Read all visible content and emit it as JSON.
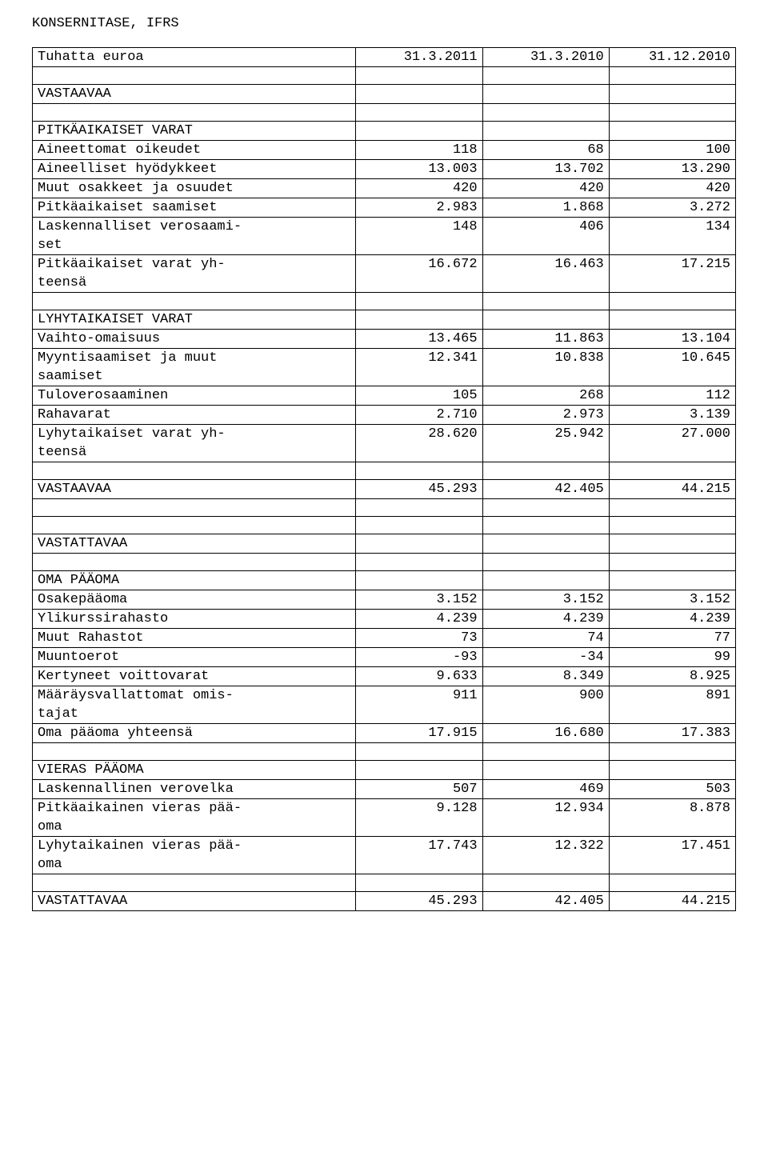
{
  "page_title": "KONSERNITASE, IFRS",
  "header": {
    "col1": "Tuhatta euroa",
    "col2": "31.3.2011",
    "col3": "31.3.2010",
    "col4": "31.12.2010"
  },
  "sections": {
    "vastaavaa": "VASTAAVAA",
    "pitkaaikaiset": "PITKÄAIKAISET VARAT",
    "lyhytaikaiset": "LYHYTAIKAISET VARAT",
    "vastattavaa": "VASTATTAVAA",
    "oma_paaoma": "OMA PÄÄOMA",
    "vieras_paaoma": "VIERAS PÄÄOMA"
  },
  "rows": {
    "aineettomat": {
      "label": "Aineettomat oikeudet",
      "v1": "118",
      "v2": "68",
      "v3": "100"
    },
    "aineelliset": {
      "label": "Aineelliset hyödykkeet",
      "v1": "13.003",
      "v2": "13.702",
      "v3": "13.290"
    },
    "muut_osakkeet": {
      "label": "Muut osakkeet ja osuudet",
      "v1": "420",
      "v2": "420",
      "v3": "420"
    },
    "pitkaaikaiset_saamiset": {
      "label": "Pitkäaikaiset saamiset",
      "v1": "2.983",
      "v2": "1.868",
      "v3": "3.272"
    },
    "lask_verosaamiset_1": {
      "label": "Laskennalliset verosaami-",
      "v1": "148",
      "v2": "406",
      "v3": "134"
    },
    "lask_verosaamiset_2": {
      "label": "set"
    },
    "pitk_varat_yht_1": {
      "label": "Pitkäaikaiset varat yh-",
      "v1": "16.672",
      "v2": "16.463",
      "v3": "17.215"
    },
    "pitk_varat_yht_2": {
      "label": "teensä"
    },
    "vaihto_omaisuus": {
      "label": "Vaihto-omaisuus",
      "v1": "13.465",
      "v2": "11.863",
      "v3": "13.104"
    },
    "myyntisaamiset_1": {
      "label": "Myyntisaamiset ja muut",
      "v1": "12.341",
      "v2": "10.838",
      "v3": "10.645"
    },
    "myyntisaamiset_2": {
      "label": "saamiset"
    },
    "tuloverosaaminen": {
      "label": "Tuloverosaaminen",
      "v1": "105",
      "v2": "268",
      "v3": "112"
    },
    "rahavarat": {
      "label": "Rahavarat",
      "v1": "2.710",
      "v2": "2.973",
      "v3": "3.139"
    },
    "lyhyt_varat_yht_1": {
      "label": "Lyhytaikaiset varat yh-",
      "v1": "28.620",
      "v2": "25.942",
      "v3": "27.000"
    },
    "lyhyt_varat_yht_2": {
      "label": "teensä"
    },
    "vastaavaa_total": {
      "label": "VASTAAVAA",
      "v1": "45.293",
      "v2": "42.405",
      "v3": "44.215"
    },
    "osakepaaoma": {
      "label": "Osakepääoma",
      "v1": "3.152",
      "v2": "3.152",
      "v3": "3.152"
    },
    "ylikurssirahasto": {
      "label": "Ylikurssirahasto",
      "v1": "4.239",
      "v2": "4.239",
      "v3": "4.239"
    },
    "muut_rahastot": {
      "label": "Muut Rahastot",
      "v1": "73",
      "v2": "74",
      "v3": "77"
    },
    "muuntoerot": {
      "label": "Muuntoerot",
      "v1": "-93",
      "v2": "-34",
      "v3": "99"
    },
    "kertyneet": {
      "label": "Kertyneet voittovarat",
      "v1": "9.633",
      "v2": "8.349",
      "v3": "8.925"
    },
    "maaraysvallattomat_1": {
      "label": "Määräysvallattomat omis-",
      "v1": "911",
      "v2": "900",
      "v3": "891"
    },
    "maaraysvallattomat_2": {
      "label": "tajat"
    },
    "oma_paaoma_yht": {
      "label": "Oma pääoma yhteensä",
      "v1": "17.915",
      "v2": "16.680",
      "v3": "17.383"
    },
    "lask_verovelka": {
      "label": "Laskennallinen verovelka",
      "v1": "507",
      "v2": "469",
      "v3": "503"
    },
    "pitk_vieras_1": {
      "label": "Pitkäaikainen vieras pää-",
      "v1": "9.128",
      "v2": "12.934",
      "v3": "8.878"
    },
    "pitk_vieras_2": {
      "label": "oma"
    },
    "lyhyt_vieras_1": {
      "label": "Lyhytaikainen vieras pää-",
      "v1": "17.743",
      "v2": "12.322",
      "v3": "17.451"
    },
    "lyhyt_vieras_2": {
      "label": "oma"
    },
    "vastattavaa_total": {
      "label": "VASTATTAVAA",
      "v1": "45.293",
      "v2": "42.405",
      "v3": "44.215"
    }
  }
}
